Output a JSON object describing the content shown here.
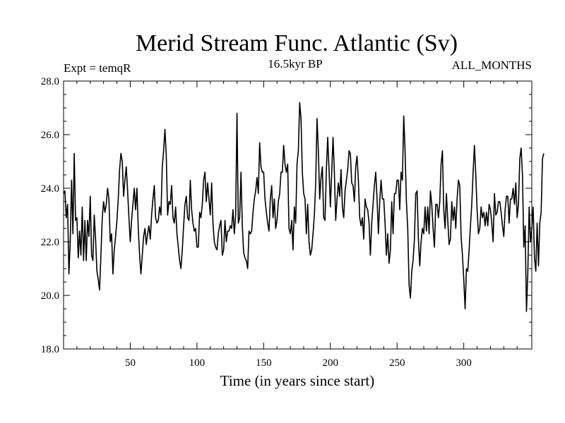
{
  "chart_data": {
    "type": "line",
    "title": "Merid Stream Func. Atlantic (Sv)",
    "left_label": "Expt = temqR",
    "center_label": "16.5kyr BP",
    "right_label": "ALL_MONTHS",
    "xlabel": "Time (in years since start)",
    "ylabel": "",
    "xlim": [
      0,
      351
    ],
    "ylim": [
      18.0,
      28.0
    ],
    "x_ticks": [
      50,
      100,
      150,
      200,
      250,
      300
    ],
    "x_tick_labels": [
      "50",
      "100",
      "150",
      "200",
      "250",
      "300"
    ],
    "y_ticks": [
      18,
      20,
      22,
      24,
      26,
      28
    ],
    "y_tick_labels": [
      "18.0",
      "20.0",
      "22.0",
      "24.0",
      "26.0",
      "28.0"
    ],
    "series": [
      {
        "name": "Merid Stream Func. Atlantic",
        "x_start": 0,
        "x_step": 1,
        "values": [
          23.8,
          23.9,
          22.9,
          23.4,
          20.8,
          22.0,
          24.3,
          22.3,
          25.3,
          22.8,
          22.9,
          21.4,
          22.4,
          21.5,
          23.3,
          21.3,
          22.8,
          21.3,
          22.8,
          22.2,
          23.7,
          21.5,
          21.3,
          23.0,
          22.1,
          20.9,
          20.6,
          20.2,
          21.5,
          22.9,
          23.5,
          23.1,
          23.4,
          24.0,
          23.6,
          22.0,
          22.3,
          20.8,
          21.7,
          22.2,
          22.8,
          23.6,
          24.7,
          25.3,
          25.0,
          23.7,
          24.3,
          24.8,
          23.9,
          22.9,
          22.0,
          22.8,
          23.4,
          24.0,
          23.2,
          24.0,
          22.5,
          21.5,
          20.8,
          21.5,
          22.2,
          22.5,
          21.9,
          22.3,
          22.6,
          22.1,
          23.0,
          23.6,
          24.1,
          22.9,
          22.7,
          22.8,
          23.3,
          23.0,
          24.8,
          25.4,
          26.2,
          25.2,
          23.0,
          23.5,
          23.4,
          24.1,
          22.9,
          22.7,
          23.3,
          22.3,
          21.8,
          21.3,
          21.0,
          21.7,
          22.6,
          23.4,
          23.7,
          22.9,
          22.8,
          24.3,
          23.2,
          22.7,
          22.4,
          22.5,
          21.8,
          21.8,
          23.1,
          22.9,
          23.4,
          24.3,
          24.6,
          23.5,
          24.2,
          23.6,
          23.0,
          24.2,
          22.7,
          22.0,
          21.8,
          21.7,
          22.3,
          22.6,
          22.8,
          21.5,
          21.7,
          22.8,
          22.0,
          22.4,
          22.4,
          22.6,
          22.5,
          23.2,
          22.3,
          23.0,
          26.8,
          22.7,
          22.9,
          24.6,
          22.6,
          21.6,
          21.4,
          21.3,
          21.0,
          22.4,
          22.3,
          22.4,
          23.1,
          23.6,
          23.9,
          24.4,
          23.8,
          25.7,
          24.8,
          24.6,
          24.6,
          23.6,
          23.1,
          22.7,
          22.4,
          23.6,
          24.1,
          22.9,
          23.6,
          22.5,
          22.8,
          23.5,
          23.8,
          24.6,
          24.6,
          25.6,
          24.9,
          24.6,
          24.9,
          22.5,
          22.3,
          22.8,
          21.7,
          23.3,
          22.7,
          24.9,
          25.4,
          27.2,
          26.6,
          24.6,
          23.8,
          23.6,
          22.3,
          23.4,
          22.0,
          21.5,
          21.7,
          22.3,
          23.0,
          24.2,
          26.6,
          25.4,
          23.6,
          24.4,
          24.8,
          22.9,
          22.8,
          24.7,
          25.9,
          24.7,
          23.3,
          24.6,
          25.9,
          24.6,
          22.8,
          23.6,
          24.2,
          23.7,
          24.7,
          23.3,
          22.9,
          23.9,
          24.3,
          24.7,
          25.4,
          25.3,
          24.2,
          24.1,
          23.5,
          24.8,
          25.2,
          24.3,
          22.9,
          22.6,
          22.9,
          22.1,
          23.6,
          23.3,
          23.2,
          22.7,
          21.5,
          22.7,
          23.4,
          24.1,
          24.6,
          23.6,
          22.3,
          23.5,
          24.3,
          23.6,
          23.6,
          22.7,
          21.5,
          22.3,
          21.2,
          21.7,
          23.5,
          22.3,
          23.8,
          23.8,
          24.3,
          24.3,
          23.2,
          24.6,
          24.3,
          26.7,
          25.4,
          23.5,
          22.5,
          20.4,
          19.9,
          20.9,
          21.3,
          22.1,
          23.8,
          23.9,
          22.1,
          21.1,
          22.0,
          22.5,
          22.3,
          23.3,
          22.4,
          23.3,
          22.3,
          23.9,
          23.4,
          22.5,
          21.8,
          23.4,
          23.4,
          22.9,
          23.5,
          24.9,
          25.4,
          23.2,
          22.5,
          23.8,
          22.8,
          21.9,
          22.1,
          23.5,
          22.8,
          23.3,
          22.5,
          23.6,
          24.3,
          24.1,
          22.2,
          21.5,
          20.6,
          19.5,
          21.0,
          20.9,
          21.7,
          22.6,
          23.4,
          24.6,
          25.6,
          24.5,
          23.2,
          22.3,
          22.5,
          23.3,
          22.9,
          23.1,
          22.6,
          23.1,
          22.6,
          23.4,
          23.2,
          22.7,
          22.0,
          23.8,
          23.0,
          23.1,
          23.5,
          23.5,
          23.1,
          22.6,
          22.2,
          23.2,
          23.7,
          23.7,
          22.7,
          23.6,
          23.6,
          24.0,
          23.4,
          24.2,
          22.9,
          23.4,
          25.1,
          25.5,
          24.5,
          21.8,
          22.6,
          19.4,
          20.8,
          23.3,
          22.0,
          22.5,
          23.3,
          21.4,
          20.9,
          22.7,
          21.1,
          22.7,
          23.1,
          25.1,
          25.3
        ]
      }
    ]
  }
}
